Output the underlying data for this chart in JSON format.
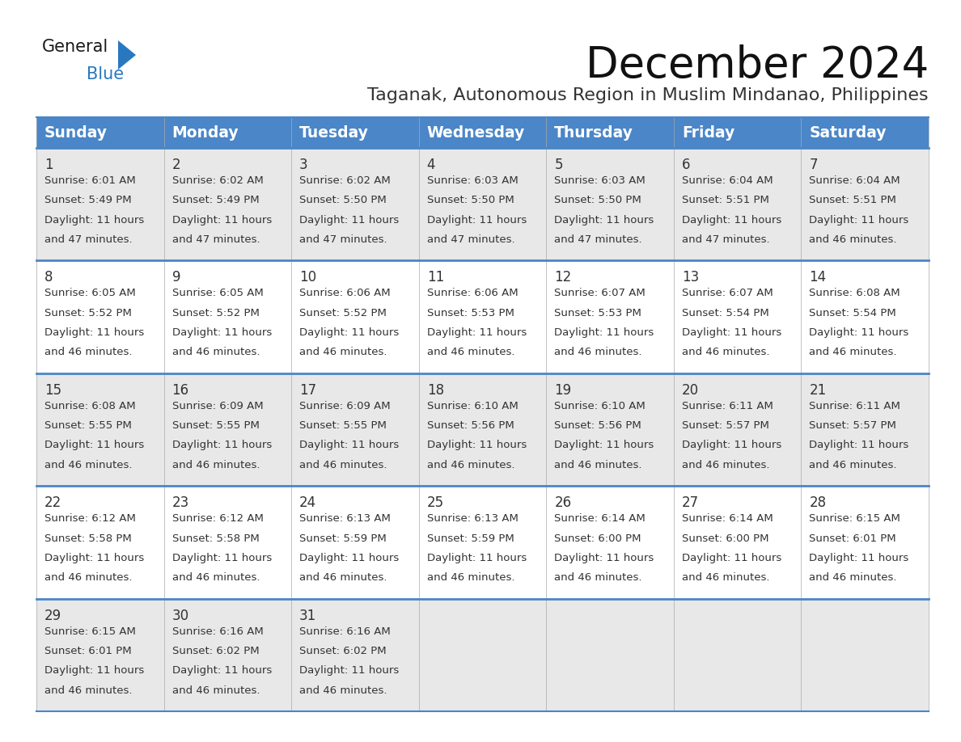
{
  "title": "December 2024",
  "subtitle": "Taganak, Autonomous Region in Muslim Mindanao, Philippines",
  "header_bg_color": "#4a86c8",
  "header_text_color": "#ffffff",
  "row_bg_even": "#e8e8e8",
  "row_bg_odd": "#ffffff",
  "separator_color": "#4a86c8",
  "text_color": "#333333",
  "days_of_week": [
    "Sunday",
    "Monday",
    "Tuesday",
    "Wednesday",
    "Thursday",
    "Friday",
    "Saturday"
  ],
  "title_fontsize": 38,
  "subtitle_fontsize": 16,
  "header_fontsize": 13.5,
  "cell_day_fontsize": 12,
  "cell_info_fontsize": 9.5,
  "logo_general_color": "#1a1a1a",
  "logo_blue_color": "#2878c0",
  "calendar_data": [
    [
      {
        "day": "1",
        "sunrise": "6:01 AM",
        "sunset": "5:49 PM",
        "dl1": "Daylight: 11 hours",
        "dl2": "and 47 minutes."
      },
      {
        "day": "2",
        "sunrise": "6:02 AM",
        "sunset": "5:49 PM",
        "dl1": "Daylight: 11 hours",
        "dl2": "and 47 minutes."
      },
      {
        "day": "3",
        "sunrise": "6:02 AM",
        "sunset": "5:50 PM",
        "dl1": "Daylight: 11 hours",
        "dl2": "and 47 minutes."
      },
      {
        "day": "4",
        "sunrise": "6:03 AM",
        "sunset": "5:50 PM",
        "dl1": "Daylight: 11 hours",
        "dl2": "and 47 minutes."
      },
      {
        "day": "5",
        "sunrise": "6:03 AM",
        "sunset": "5:50 PM",
        "dl1": "Daylight: 11 hours",
        "dl2": "and 47 minutes."
      },
      {
        "day": "6",
        "sunrise": "6:04 AM",
        "sunset": "5:51 PM",
        "dl1": "Daylight: 11 hours",
        "dl2": "and 47 minutes."
      },
      {
        "day": "7",
        "sunrise": "6:04 AM",
        "sunset": "5:51 PM",
        "dl1": "Daylight: 11 hours",
        "dl2": "and 46 minutes."
      }
    ],
    [
      {
        "day": "8",
        "sunrise": "6:05 AM",
        "sunset": "5:52 PM",
        "dl1": "Daylight: 11 hours",
        "dl2": "and 46 minutes."
      },
      {
        "day": "9",
        "sunrise": "6:05 AM",
        "sunset": "5:52 PM",
        "dl1": "Daylight: 11 hours",
        "dl2": "and 46 minutes."
      },
      {
        "day": "10",
        "sunrise": "6:06 AM",
        "sunset": "5:52 PM",
        "dl1": "Daylight: 11 hours",
        "dl2": "and 46 minutes."
      },
      {
        "day": "11",
        "sunrise": "6:06 AM",
        "sunset": "5:53 PM",
        "dl1": "Daylight: 11 hours",
        "dl2": "and 46 minutes."
      },
      {
        "day": "12",
        "sunrise": "6:07 AM",
        "sunset": "5:53 PM",
        "dl1": "Daylight: 11 hours",
        "dl2": "and 46 minutes."
      },
      {
        "day": "13",
        "sunrise": "6:07 AM",
        "sunset": "5:54 PM",
        "dl1": "Daylight: 11 hours",
        "dl2": "and 46 minutes."
      },
      {
        "day": "14",
        "sunrise": "6:08 AM",
        "sunset": "5:54 PM",
        "dl1": "Daylight: 11 hours",
        "dl2": "and 46 minutes."
      }
    ],
    [
      {
        "day": "15",
        "sunrise": "6:08 AM",
        "sunset": "5:55 PM",
        "dl1": "Daylight: 11 hours",
        "dl2": "and 46 minutes."
      },
      {
        "day": "16",
        "sunrise": "6:09 AM",
        "sunset": "5:55 PM",
        "dl1": "Daylight: 11 hours",
        "dl2": "and 46 minutes."
      },
      {
        "day": "17",
        "sunrise": "6:09 AM",
        "sunset": "5:55 PM",
        "dl1": "Daylight: 11 hours",
        "dl2": "and 46 minutes."
      },
      {
        "day": "18",
        "sunrise": "6:10 AM",
        "sunset": "5:56 PM",
        "dl1": "Daylight: 11 hours",
        "dl2": "and 46 minutes."
      },
      {
        "day": "19",
        "sunrise": "6:10 AM",
        "sunset": "5:56 PM",
        "dl1": "Daylight: 11 hours",
        "dl2": "and 46 minutes."
      },
      {
        "day": "20",
        "sunrise": "6:11 AM",
        "sunset": "5:57 PM",
        "dl1": "Daylight: 11 hours",
        "dl2": "and 46 minutes."
      },
      {
        "day": "21",
        "sunrise": "6:11 AM",
        "sunset": "5:57 PM",
        "dl1": "Daylight: 11 hours",
        "dl2": "and 46 minutes."
      }
    ],
    [
      {
        "day": "22",
        "sunrise": "6:12 AM",
        "sunset": "5:58 PM",
        "dl1": "Daylight: 11 hours",
        "dl2": "and 46 minutes."
      },
      {
        "day": "23",
        "sunrise": "6:12 AM",
        "sunset": "5:58 PM",
        "dl1": "Daylight: 11 hours",
        "dl2": "and 46 minutes."
      },
      {
        "day": "24",
        "sunrise": "6:13 AM",
        "sunset": "5:59 PM",
        "dl1": "Daylight: 11 hours",
        "dl2": "and 46 minutes."
      },
      {
        "day": "25",
        "sunrise": "6:13 AM",
        "sunset": "5:59 PM",
        "dl1": "Daylight: 11 hours",
        "dl2": "and 46 minutes."
      },
      {
        "day": "26",
        "sunrise": "6:14 AM",
        "sunset": "6:00 PM",
        "dl1": "Daylight: 11 hours",
        "dl2": "and 46 minutes."
      },
      {
        "day": "27",
        "sunrise": "6:14 AM",
        "sunset": "6:00 PM",
        "dl1": "Daylight: 11 hours",
        "dl2": "and 46 minutes."
      },
      {
        "day": "28",
        "sunrise": "6:15 AM",
        "sunset": "6:01 PM",
        "dl1": "Daylight: 11 hours",
        "dl2": "and 46 minutes."
      }
    ],
    [
      {
        "day": "29",
        "sunrise": "6:15 AM",
        "sunset": "6:01 PM",
        "dl1": "Daylight: 11 hours",
        "dl2": "and 46 minutes."
      },
      {
        "day": "30",
        "sunrise": "6:16 AM",
        "sunset": "6:02 PM",
        "dl1": "Daylight: 11 hours",
        "dl2": "and 46 minutes."
      },
      {
        "day": "31",
        "sunrise": "6:16 AM",
        "sunset": "6:02 PM",
        "dl1": "Daylight: 11 hours",
        "dl2": "and 46 minutes."
      },
      null,
      null,
      null,
      null
    ]
  ]
}
